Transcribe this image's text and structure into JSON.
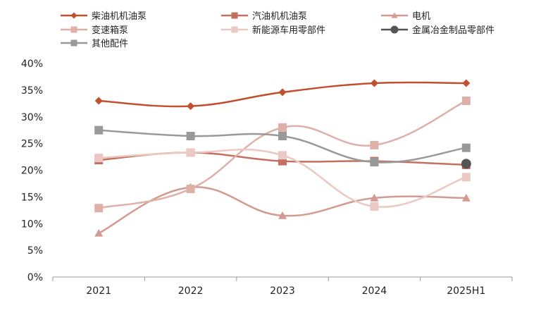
{
  "chart_data": {
    "type": "line",
    "title": "",
    "xlabel": "",
    "ylabel": "",
    "ylim": [
      0,
      40
    ],
    "y_ticks": [
      "0%",
      "5%",
      "10%",
      "15%",
      "20%",
      "25%",
      "30%",
      "35%",
      "40%"
    ],
    "categories": [
      "2021",
      "2022",
      "2023",
      "2024",
      "2025H1"
    ],
    "grid": false,
    "legend_position": "top-left",
    "series": [
      {
        "name": "柴油机机油泵",
        "color": "#c0502f",
        "marker": "diamond",
        "values": [
          33.0,
          32.0,
          34.6,
          36.3,
          36.3
        ]
      },
      {
        "name": "汽油机机油泵",
        "color": "#c47060",
        "marker": "square",
        "values": [
          21.9,
          23.3,
          21.7,
          21.7,
          21.0
        ]
      },
      {
        "name": "电机",
        "color": "#d39a90",
        "marker": "triangle",
        "values": [
          8.2,
          16.8,
          11.5,
          14.8,
          14.8
        ]
      },
      {
        "name": "变速箱泵",
        "color": "#dfb0a8",
        "marker": "square",
        "values": [
          12.9,
          16.5,
          28.0,
          24.7,
          33.0
        ]
      },
      {
        "name": "新能源车用零部件",
        "color": "#ecc8c2",
        "marker": "square",
        "values": [
          22.3,
          23.3,
          22.8,
          13.2,
          18.7
        ]
      },
      {
        "name": "金属冶金制品零部件",
        "color": "#555555",
        "marker": "circle",
        "values": [
          null,
          null,
          null,
          null,
          21.2
        ]
      },
      {
        "name": "其他配件",
        "color": "#999999",
        "marker": "square",
        "values": [
          27.5,
          26.4,
          26.4,
          21.5,
          24.2
        ]
      }
    ]
  }
}
